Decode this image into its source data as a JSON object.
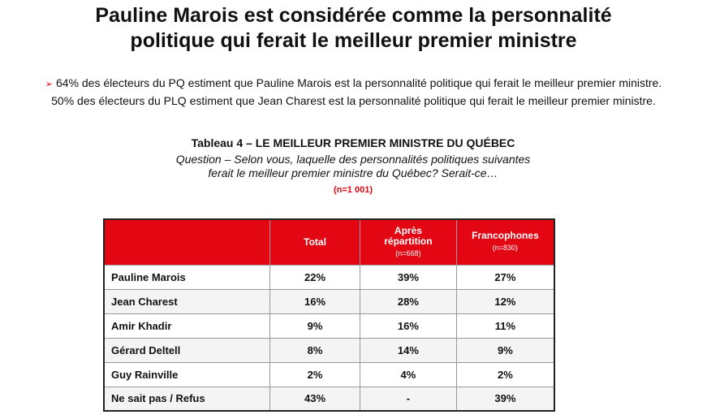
{
  "title": {
    "line1": "Pauline Marois est considérée comme la personnalité",
    "line2": "politique qui ferait le meilleur premier ministre"
  },
  "bullets": [
    "64% des électeurs du PQ estiment que Pauline Marois est la personnalité politique qui ferait le meilleur premier ministre.",
    "50% des électeurs du PLQ estiment que Jean Charest est la personnalité politique qui ferait le meilleur premier ministre."
  ],
  "table": {
    "title": "Tableau 4 – LE MEILLEUR PREMIER MINISTRE DU QUÉBEC",
    "question_line1": "Question – Selon vous, laquelle des personnalités politiques suivantes",
    "question_line2": "ferait le meilleur premier ministre du Québec? Serait-ce…",
    "sample": "(n=1 001)",
    "columns": [
      {
        "label": "Total",
        "sub": ""
      },
      {
        "label": "Après répartition",
        "sub": "(n=668)"
      },
      {
        "label": "Francophones",
        "sub": "(n=830)"
      }
    ],
    "rows": [
      {
        "name": "Pauline Marois",
        "values": [
          "22%",
          "39%",
          "27%"
        ]
      },
      {
        "name": "Jean Charest",
        "values": [
          "16%",
          "28%",
          "12%"
        ]
      },
      {
        "name": "Amir Khadir",
        "values": [
          "9%",
          "16%",
          "11%"
        ]
      },
      {
        "name": "Gérard Deltell",
        "values": [
          "8%",
          "14%",
          "9%"
        ]
      },
      {
        "name": "Guy Rainville",
        "values": [
          "2%",
          "4%",
          "2%"
        ]
      },
      {
        "name": "Ne sait pas / Refus",
        "values": [
          "43%",
          "-",
          "39%"
        ]
      }
    ]
  },
  "colors": {
    "accent": "#e30613"
  }
}
